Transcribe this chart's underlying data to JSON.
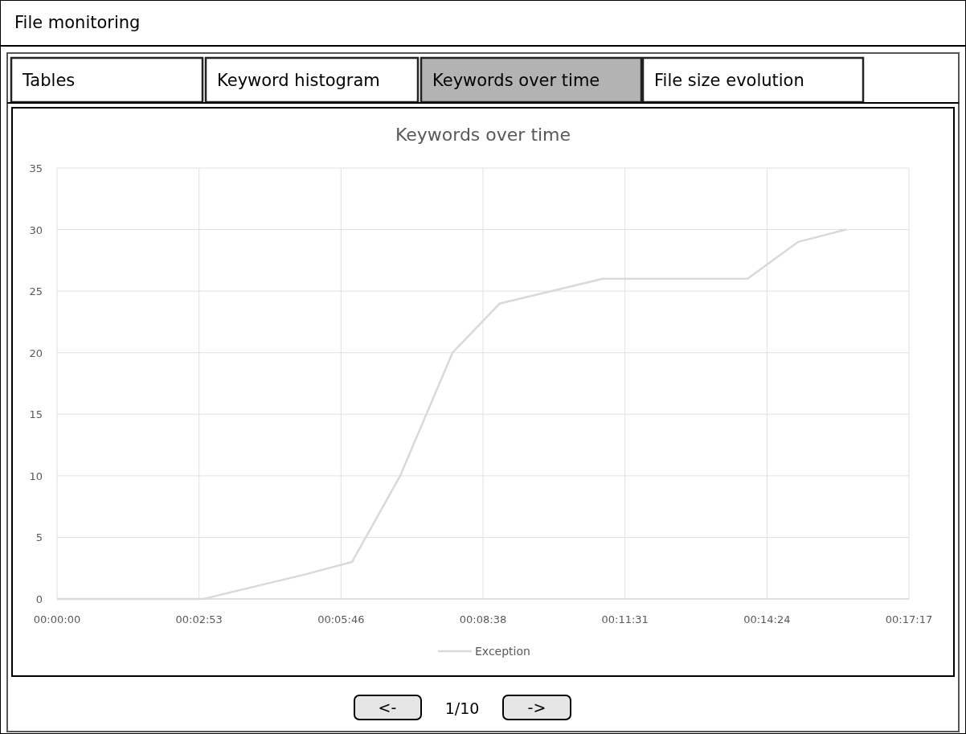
{
  "chart_data": {
    "type": "line",
    "title": "Keywords over time",
    "annotations": [
      "File monitoring",
      "Tables",
      "Keyword histogram",
      "Keywords over time",
      "File size evolution",
      "<-",
      "1/10",
      "->"
    ],
    "series": [
      {
        "name": "Exception",
        "color": "#d9d9d9",
        "x": [
          0,
          0.0494,
          0.084,
          0.0997,
          0.116,
          0.1337,
          0.1497,
          0.1845,
          0.2334,
          0.2505,
          0.2668
        ],
        "values": [
          0,
          0,
          2,
          3,
          10,
          20,
          24,
          26,
          26,
          29,
          30
        ]
      }
    ],
    "xlim": [
      0,
      0.288
    ],
    "xticks": [
      {
        "value": 0,
        "label": "00:00:00"
      },
      {
        "value": 0.048,
        "label": "00:02:53"
      },
      {
        "value": 0.096,
        "label": "00:05:46"
      },
      {
        "value": 0.144,
        "label": "00:08:38"
      },
      {
        "value": 0.192,
        "label": "00:11:31"
      },
      {
        "value": 0.24,
        "label": "00:14:24"
      },
      {
        "value": 0.288,
        "label": "00:17:17"
      }
    ],
    "ylim": [
      0,
      35
    ],
    "yticks": [
      0,
      5,
      10,
      15,
      20,
      25,
      30,
      35
    ],
    "grid": true,
    "legend": "bottom",
    "marker": "none",
    "line_style": "solid"
  }
}
